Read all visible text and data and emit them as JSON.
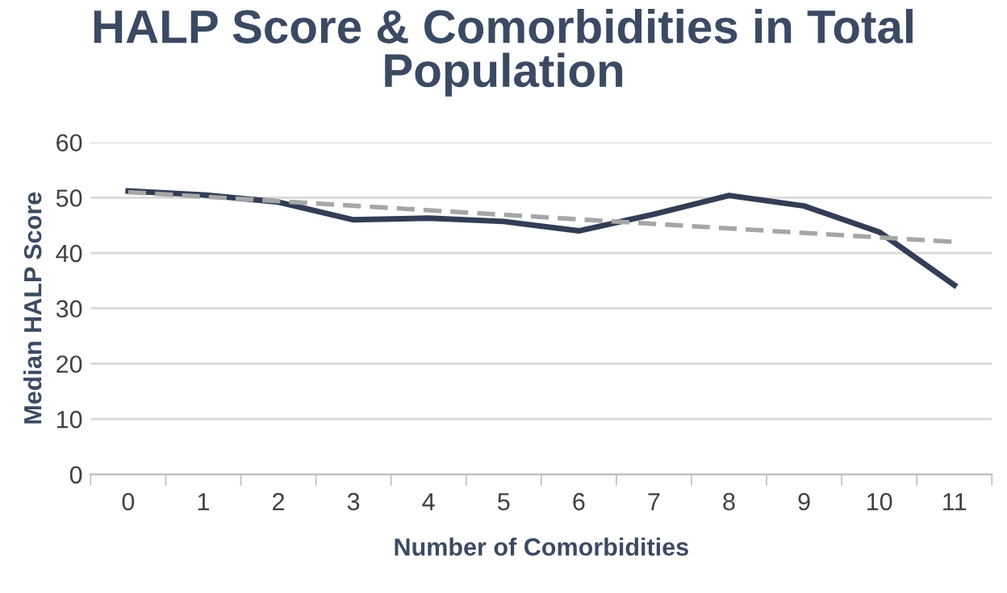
{
  "chart_data": {
    "type": "line",
    "title": "HALP Score & Comorbidities in Total\nPopulation",
    "xlabel": "Number of Comorbidities",
    "ylabel": "Median HALP Score",
    "categories": [
      "0",
      "1",
      "2",
      "3",
      "4",
      "5",
      "6",
      "7",
      "8",
      "9",
      "10",
      "11"
    ],
    "series": [
      {
        "color": "#323e56",
        "values": [
          51.2,
          50.5,
          49.2,
          46,
          46.3,
          45.7,
          44,
          47,
          50.4,
          48.5,
          43.8,
          34.2
        ]
      },
      {
        "type": "line",
        "color": "#a6a6a6",
        "line_style": "dashed",
        "x": [
          "0",
          "11"
        ],
        "values": [
          51,
          42
        ]
      }
    ],
    "ylim": [
      0,
      60
    ],
    "yticks": [
      0,
      10,
      20,
      30,
      40,
      50,
      60
    ],
    "grid": "y",
    "legend": false
  }
}
